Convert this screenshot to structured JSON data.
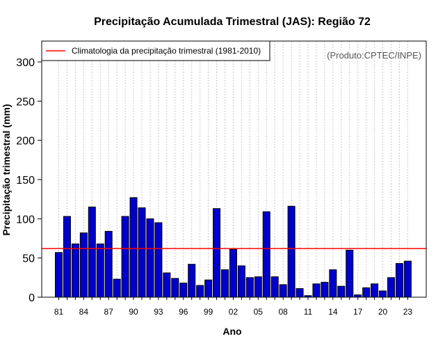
{
  "chart_data": {
    "type": "bar",
    "title": "Precipitação Acumulada Trimestral (JAS): Região 72",
    "xlabel": "Ano",
    "ylabel": "Precipitação trimestral (mm)",
    "ylim": [
      0,
      325
    ],
    "yticks": [
      0,
      50,
      100,
      150,
      200,
      250,
      300
    ],
    "years": [
      1981,
      1982,
      1983,
      1984,
      1985,
      1986,
      1987,
      1988,
      1989,
      1990,
      1991,
      1992,
      1993,
      1994,
      1995,
      1996,
      1997,
      1998,
      1999,
      2000,
      2001,
      2002,
      2003,
      2004,
      2005,
      2006,
      2007,
      2008,
      2009,
      2010,
      2011,
      2012,
      2013,
      2014,
      2015,
      2016,
      2017,
      2018,
      2019,
      2020,
      2021,
      2022,
      2023
    ],
    "values": [
      57,
      103,
      68,
      82,
      115,
      68,
      84,
      23,
      103,
      127,
      114,
      100,
      95,
      31,
      24,
      18,
      42,
      15,
      22,
      113,
      35,
      61,
      40,
      25,
      26,
      109,
      26,
      16,
      116,
      11,
      2,
      17,
      19,
      35,
      14,
      60,
      3,
      12,
      17,
      8,
      25,
      43,
      46
    ],
    "tick_labels": [
      "81",
      "84",
      "87",
      "90",
      "93",
      "96",
      "99",
      "02",
      "05",
      "08",
      "11",
      "14",
      "17",
      "20",
      "23"
    ],
    "tick_years": [
      1981,
      1984,
      1987,
      1990,
      1993,
      1996,
      1999,
      2002,
      2005,
      2008,
      2011,
      2014,
      2017,
      2020,
      2023
    ],
    "climatology": 62,
    "legend": {
      "label": "Climatologia da precipitação trimestral (1981-2010)",
      "position": "top-left"
    },
    "credit": "(Produto:CPTEC/INPE)",
    "grid": true,
    "colors": {
      "bar": "#0000CC",
      "bar_edge": "#000000",
      "climatology": "#FF0000",
      "grid": "#C8C8C8"
    }
  }
}
